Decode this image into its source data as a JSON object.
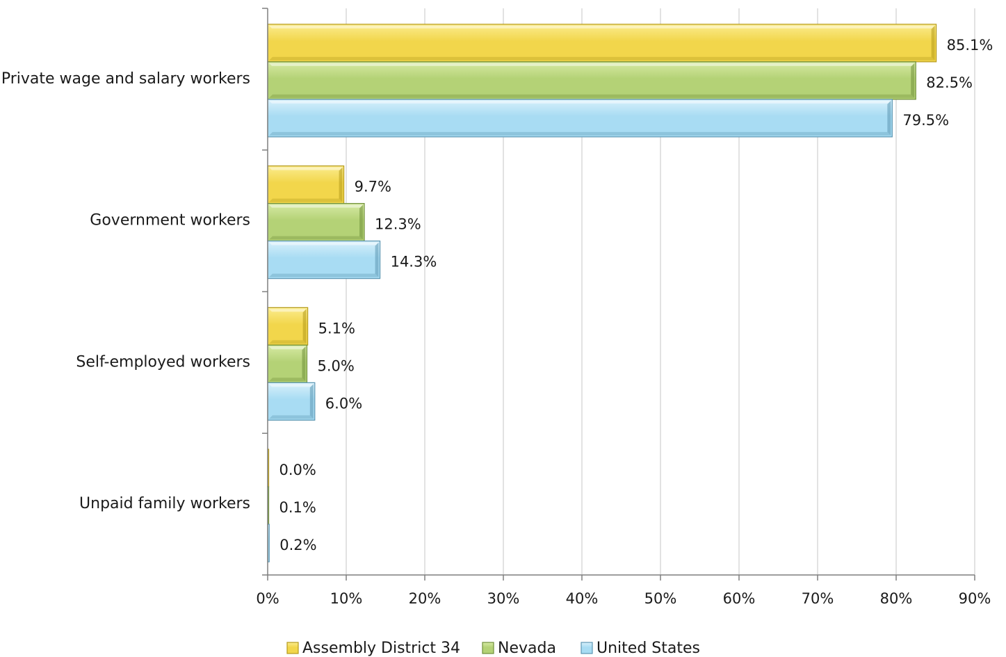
{
  "chart_data": {
    "type": "bar",
    "orientation": "horizontal",
    "categories": [
      "Private wage and salary workers",
      "Government workers",
      "Self-employed workers",
      "Unpaid family workers"
    ],
    "series": [
      {
        "name": "Assembly District 34",
        "values": [
          85.1,
          9.7,
          5.1,
          0.0
        ],
        "labels": [
          "85.1%",
          "9.7%",
          "5.1%",
          "0.0%"
        ]
      },
      {
        "name": "Nevada",
        "values": [
          82.5,
          12.3,
          5.0,
          0.1
        ],
        "labels": [
          "82.5%",
          "12.3%",
          "5.0%",
          "0.1%"
        ]
      },
      {
        "name": "United States",
        "values": [
          79.5,
          14.3,
          6.0,
          0.2
        ],
        "labels": [
          "79.5%",
          "14.3%",
          "6.0%",
          "0.2%"
        ]
      }
    ],
    "xlim": [
      0,
      90
    ],
    "x_ticks": [
      0,
      10,
      20,
      30,
      40,
      50,
      60,
      70,
      80,
      90
    ],
    "x_tick_labels": [
      "0%",
      "10%",
      "20%",
      "30%",
      "40%",
      "50%",
      "60%",
      "70%",
      "80%",
      "90%"
    ],
    "grid": "vertical",
    "legend_position": "bottom",
    "colors": {
      "Assembly District 34": {
        "light": "#fbec8e",
        "base": "#f2d64b",
        "dark": "#b59a1c"
      },
      "Nevada": {
        "light": "#d7eaa4",
        "base": "#b4d276",
        "dark": "#6f8f3a"
      },
      "United States": {
        "light": "#d8f0fb",
        "base": "#a8dcf3",
        "dark": "#5d97b3"
      }
    },
    "gridline_color": "#d9d9d9",
    "axis_color": "#7f7f7f"
  }
}
